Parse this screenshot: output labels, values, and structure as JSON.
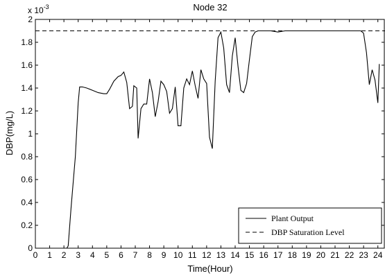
{
  "chart_data": {
    "type": "line",
    "title": "Node 32",
    "xlabel": "Time(Hour)",
    "ylabel": "DBP(mg/L)",
    "y_scale_label": "x 10",
    "y_scale_exponent": "-3",
    "xlim": [
      0,
      24.5
    ],
    "ylim": [
      0,
      0.002
    ],
    "x_ticks": [
      0,
      1,
      2,
      3,
      4,
      5,
      6,
      7,
      8,
      9,
      10,
      11,
      12,
      13,
      14,
      15,
      16,
      17,
      18,
      19,
      20,
      21,
      22,
      23,
      24
    ],
    "x_tick_labels": [
      "0",
      "1",
      "2",
      "3",
      "4",
      "5",
      "6",
      "7",
      "8",
      "9",
      "10",
      "11",
      "12",
      "13",
      "14",
      "15",
      "16",
      "17",
      "18",
      "19",
      "20",
      "21",
      "22",
      "23",
      "24"
    ],
    "y_ticks": [
      0,
      0.0002,
      0.0004,
      0.0006,
      0.0008,
      0.001,
      0.0012,
      0.0014,
      0.0016,
      0.0018,
      0.002
    ],
    "y_tick_labels": [
      "0",
      "0.2",
      "0.4",
      "0.6",
      "0.8",
      "1",
      "1.2",
      "1.4",
      "1.6",
      "1.8",
      "2"
    ],
    "grid": false,
    "legend_position": "bottom-right",
    "series": [
      {
        "name": "Plant Output",
        "style": "solid",
        "color": "#000000",
        "x": [
          0,
          2.2,
          2.3,
          2.5,
          2.8,
          3.0,
          3.1,
          3.3,
          3.6,
          4.0,
          4.4,
          4.8,
          5.0,
          5.2,
          5.5,
          5.8,
          6.0,
          6.2,
          6.4,
          6.6,
          6.8,
          6.9,
          7.1,
          7.2,
          7.4,
          7.6,
          7.8,
          8.0,
          8.2,
          8.4,
          8.6,
          8.8,
          9.0,
          9.2,
          9.4,
          9.6,
          9.8,
          10.0,
          10.2,
          10.4,
          10.6,
          10.8,
          11.0,
          11.2,
          11.4,
          11.6,
          11.8,
          12.0,
          12.2,
          12.4,
          12.6,
          12.8,
          13.0,
          13.2,
          13.4,
          13.6,
          13.8,
          14.0,
          14.2,
          14.4,
          14.6,
          14.8,
          15.0,
          15.2,
          15.4,
          15.6,
          15.8,
          16.0,
          16.5,
          17.0,
          17.5,
          18.0,
          19.0,
          20.0,
          21.0,
          22.0,
          22.8,
          23.0,
          23.2,
          23.4,
          23.6,
          23.8,
          24.0,
          24.1
        ],
        "y": [
          0,
          0,
          2e-05,
          0.00035,
          0.0008,
          0.00127,
          0.00141,
          0.00141,
          0.0014,
          0.00138,
          0.00136,
          0.00135,
          0.00135,
          0.00139,
          0.00146,
          0.0015,
          0.00151,
          0.00154,
          0.00145,
          0.00122,
          0.00124,
          0.00142,
          0.0014,
          0.00096,
          0.00122,
          0.00126,
          0.00126,
          0.00148,
          0.00136,
          0.00115,
          0.00128,
          0.00146,
          0.00143,
          0.00137,
          0.00118,
          0.00122,
          0.00141,
          0.00107,
          0.00107,
          0.0014,
          0.00148,
          0.00143,
          0.00155,
          0.00142,
          0.00131,
          0.00156,
          0.00148,
          0.00144,
          0.00097,
          0.00087,
          0.00146,
          0.00184,
          0.00189,
          0.00175,
          0.00143,
          0.00136,
          0.00168,
          0.00184,
          0.00159,
          0.00138,
          0.00136,
          0.00144,
          0.00165,
          0.00185,
          0.00189,
          0.0019,
          0.0019,
          0.0019,
          0.0019,
          0.00189,
          0.0019,
          0.0019,
          0.0019,
          0.0019,
          0.0019,
          0.0019,
          0.0019,
          0.00188,
          0.00171,
          0.00143,
          0.00156,
          0.00147,
          0.00127,
          0.00161
        ]
      },
      {
        "name": "DBP Saturation Level",
        "style": "dashed",
        "color": "#000000",
        "x": [
          0,
          24.5
        ],
        "y": [
          0.0019,
          0.0019
        ]
      }
    ]
  }
}
